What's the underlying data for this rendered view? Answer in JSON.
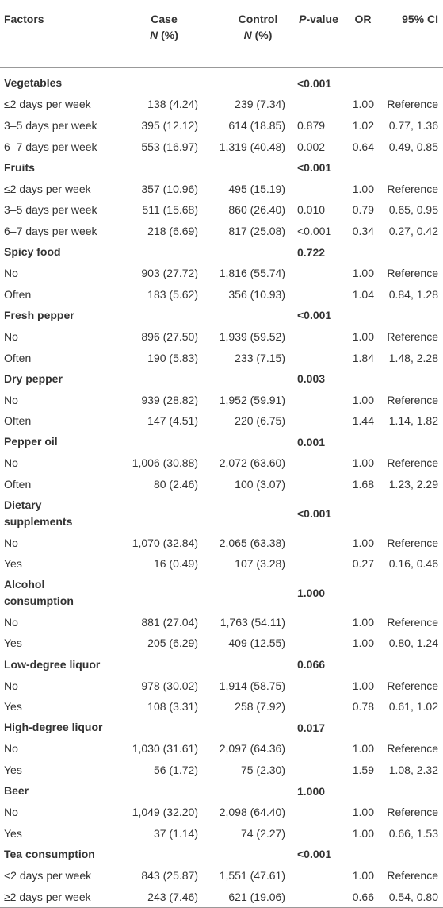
{
  "header": {
    "factors": "Factors",
    "case": "Case",
    "case_sub": "N (%)",
    "control": "Control",
    "control_sub": "N (%)",
    "p_value": "P-value",
    "or": "OR",
    "ci": "95% CI"
  },
  "groups": [
    {
      "factor": "Vegetables",
      "p_value": "<0.001",
      "rows": [
        {
          "label": "≤2 days per week",
          "case": "138 (4.24)",
          "control": "239 (7.34)",
          "or": "1.00",
          "ci": "Reference"
        },
        {
          "label": "3–5 days per week",
          "case": "395 (12.12)",
          "control": "614 (18.85)",
          "p_value": "0.879",
          "or": "1.02",
          "ci": "0.77, 1.36"
        },
        {
          "label": "6–7 days per week",
          "case": "553 (16.97)",
          "control": "1,319 (40.48)",
          "p_value": "0.002",
          "or": "0.64",
          "ci": "0.49, 0.85"
        }
      ]
    },
    {
      "factor": "Fruits",
      "p_value": "<0.001",
      "rows": [
        {
          "label": "≤2 days per week",
          "case": "357 (10.96)",
          "control": "495 (15.19)",
          "or": "1.00",
          "ci": "Reference"
        },
        {
          "label": "3–5 days per week",
          "case": "511 (15.68)",
          "control": "860 (26.40)",
          "p_value": "0.010",
          "or": "0.79",
          "ci": "0.65, 0.95"
        },
        {
          "label": "6–7 days per week",
          "case": "218 (6.69)",
          "control": "817 (25.08)",
          "p_value": "<0.001",
          "or": "0.34",
          "ci": "0.27, 0.42"
        }
      ]
    },
    {
      "factor": "Spicy food",
      "p_value": "0.722",
      "rows": [
        {
          "label": "No",
          "case": "903 (27.72)",
          "control": "1,816 (55.74)",
          "or": "1.00",
          "ci": "Reference"
        },
        {
          "label": "Often",
          "case": "183 (5.62)",
          "control": "356 (10.93)",
          "or": "1.04",
          "ci": "0.84, 1.28"
        }
      ]
    },
    {
      "factor": "Fresh pepper",
      "p_value": "<0.001",
      "rows": [
        {
          "label": "No",
          "case": "896 (27.50)",
          "control": "1,939 (59.52)",
          "or": "1.00",
          "ci": "Reference"
        },
        {
          "label": "Often",
          "case": "190 (5.83)",
          "control": "233 (7.15)",
          "or": "1.84",
          "ci": "1.48, 2.28"
        }
      ]
    },
    {
      "factor": "Dry pepper",
      "p_value": "0.003",
      "rows": [
        {
          "label": "No",
          "case": "939 (28.82)",
          "control": "1,952 (59.91)",
          "or": "1.00",
          "ci": "Reference"
        },
        {
          "label": "Often",
          "case": "147 (4.51)",
          "control": "220 (6.75)",
          "or": "1.44",
          "ci": "1.14, 1.82"
        }
      ]
    },
    {
      "factor": "Pepper oil",
      "p_value": "0.001",
      "rows": [
        {
          "label": "No",
          "case": "1,006 (30.88)",
          "control": "2,072 (63.60)",
          "or": "1.00",
          "ci": "Reference"
        },
        {
          "label": "Often",
          "case": "80 (2.46)",
          "control": "100 (3.07)",
          "or": "1.68",
          "ci": "1.23, 2.29"
        }
      ]
    },
    {
      "factor": "Dietary supplements",
      "p_value": "<0.001",
      "rows": [
        {
          "label": "No",
          "case": "1,070 (32.84)",
          "control": "2,065 (63.38)",
          "or": "1.00",
          "ci": "Reference"
        },
        {
          "label": "Yes",
          "case": "16 (0.49)",
          "control": "107 (3.28)",
          "or": "0.27",
          "ci": "0.16, 0.46"
        }
      ]
    },
    {
      "factor": "Alcohol consumption",
      "p_value": "1.000",
      "rows": [
        {
          "label": "No",
          "case": "881 (27.04)",
          "control": "1,763 (54.11)",
          "or": "1.00",
          "ci": "Reference"
        },
        {
          "label": "Yes",
          "case": "205 (6.29)",
          "control": "409 (12.55)",
          "or": "1.00",
          "ci": "0.80, 1.24"
        }
      ]
    },
    {
      "factor": "Low-degree liquor",
      "p_value": "0.066",
      "rows": [
        {
          "label": "No",
          "case": "978 (30.02)",
          "control": "1,914 (58.75)",
          "or": "1.00",
          "ci": "Reference"
        },
        {
          "label": "Yes",
          "case": "108 (3.31)",
          "control": "258 (7.92)",
          "or": "0.78",
          "ci": "0.61, 1.02"
        }
      ]
    },
    {
      "factor": "High-degree liquor",
      "p_value": "0.017",
      "rows": [
        {
          "label": "No",
          "case": "1,030 (31.61)",
          "control": "2,097 (64.36)",
          "or": "1.00",
          "ci": "Reference"
        },
        {
          "label": "Yes",
          "case": "56 (1.72)",
          "control": "75 (2.30)",
          "or": "1.59",
          "ci": "1.08, 2.32"
        }
      ]
    },
    {
      "factor": "Beer",
      "p_value": "1.000",
      "rows": [
        {
          "label": "No",
          "case": "1,049 (32.20)",
          "control": "2,098 (64.40)",
          "or": "1.00",
          "ci": "Reference"
        },
        {
          "label": "Yes",
          "case": "37 (1.14)",
          "control": "74 (2.27)",
          "or": "1.00",
          "ci": "0.66, 1.53"
        }
      ]
    },
    {
      "factor": "Tea consumption",
      "p_value": "<0.001",
      "rows": [
        {
          "label": "<2 days per week",
          "case": "843 (25.87)",
          "control": "1,551 (47.61)",
          "or": "1.00",
          "ci": "Reference"
        },
        {
          "label": "≥2 days per week",
          "case": "243 (7.46)",
          "control": "621 (19.06)",
          "or": "0.66",
          "ci": "0.54, 0.80"
        }
      ]
    }
  ]
}
